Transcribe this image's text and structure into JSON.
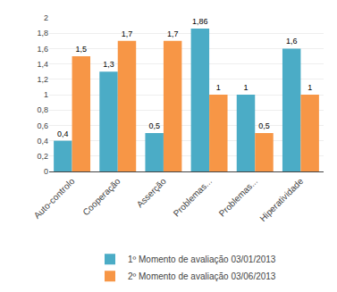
{
  "chart_data": {
    "type": "bar",
    "categories": [
      "Auto-controlo",
      "Cooperação",
      "Asserção",
      "Problemas...",
      "Problemas...",
      "Hiperatividade"
    ],
    "series": [
      {
        "name": "1º Momento de avaliação 03/01/2013",
        "color": "#4BACC6",
        "values": [
          0.4,
          1.3,
          0.5,
          1.86,
          1.0,
          1.6
        ],
        "value_labels": [
          "0,4",
          "1,3",
          "0,5",
          "1,86",
          "1",
          "1,6"
        ]
      },
      {
        "name": "2º Momento de avaliação 03/06/2013",
        "color": "#F79646",
        "values": [
          1.5,
          1.7,
          1.7,
          1.0,
          0.5,
          1.0
        ],
        "value_labels": [
          "1,5",
          "1,7",
          "1,7",
          "1",
          "0,5",
          "1"
        ]
      }
    ],
    "ylim": [
      0,
      2.0
    ],
    "yticks": [
      0,
      {
        "value": 0.2,
        "label": "0,2"
      },
      {
        "value": 0.4,
        "label": "0,4"
      },
      {
        "value": 0.6,
        "label": "0,6"
      },
      {
        "value": 0.8,
        "label": "0,8"
      },
      1,
      {
        "value": 1.2,
        "label": "1,2"
      },
      {
        "value": 1.4,
        "label": "1,4"
      },
      {
        "value": 1.6,
        "label": "1,6"
      },
      {
        "value": 1.8,
        "label": "1,8"
      },
      2
    ],
    "grid": true,
    "data_labels": true,
    "legend": "bottom"
  }
}
